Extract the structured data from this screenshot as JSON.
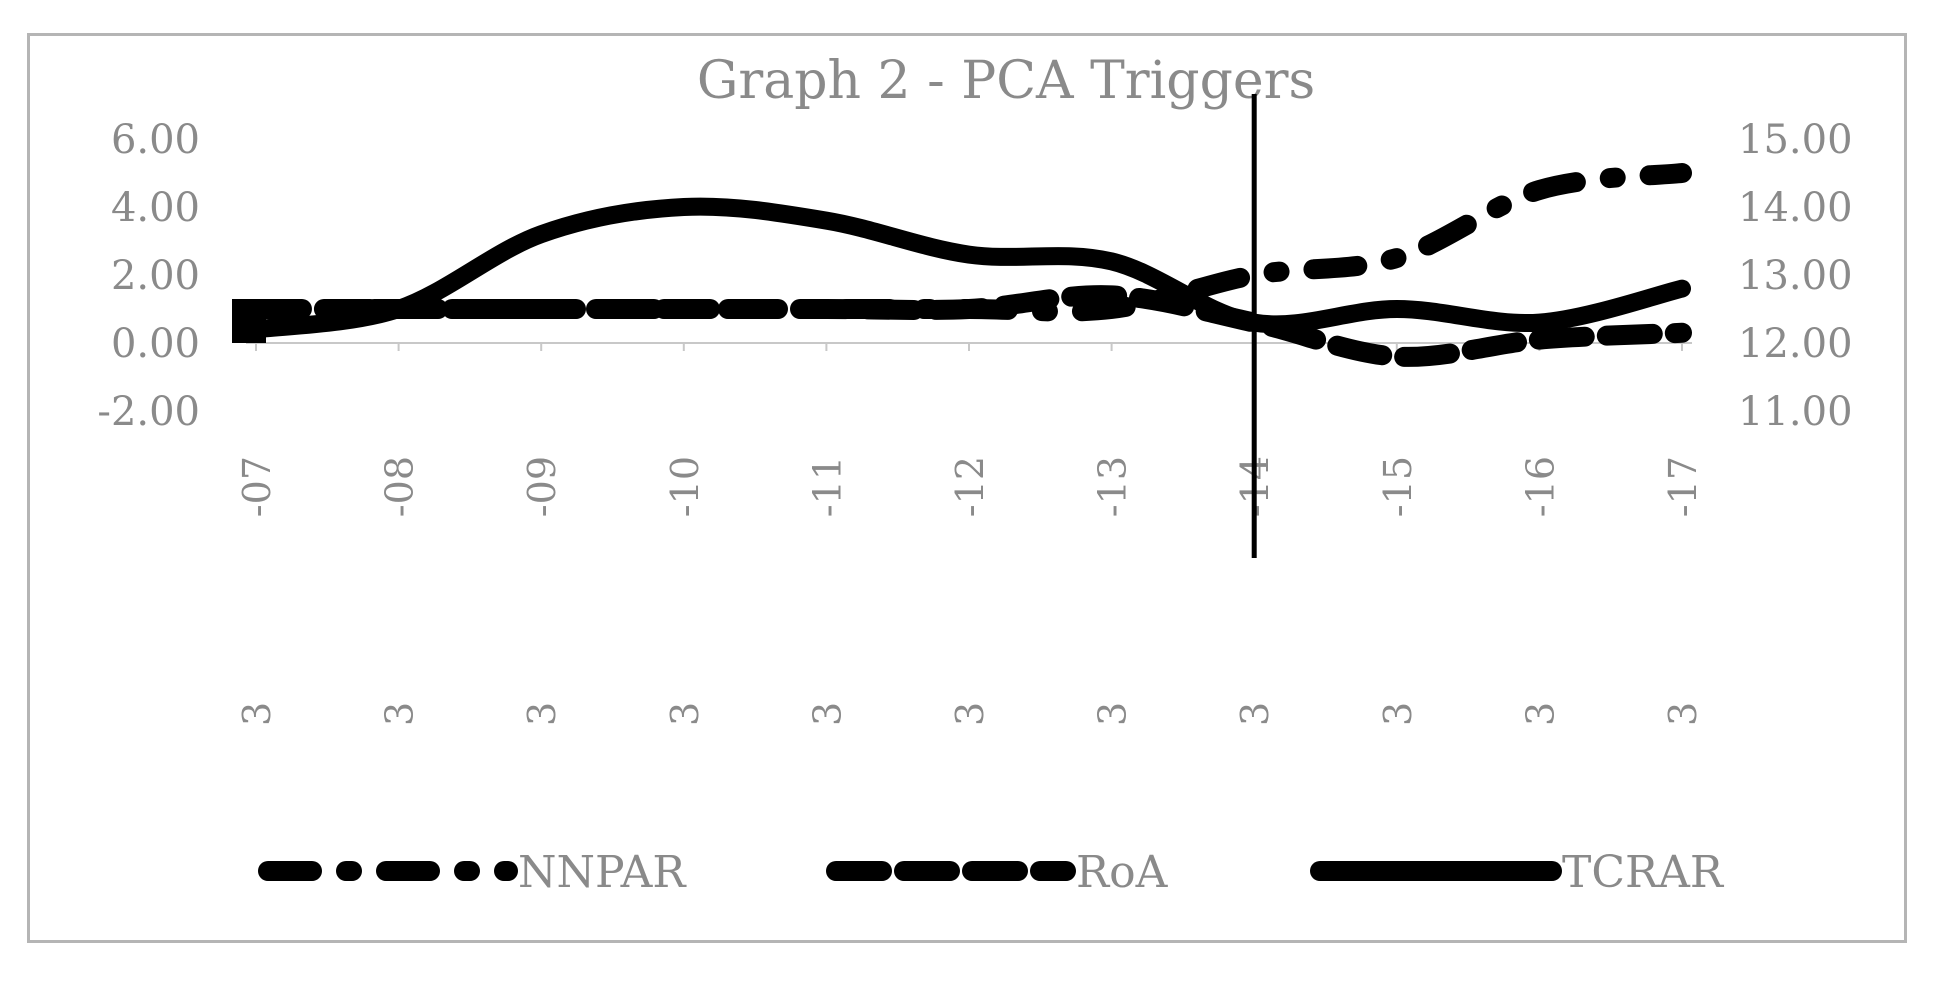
{
  "chart_data": {
    "type": "line",
    "title": "Graph 2 - PCA Triggers",
    "categories": [
      "3 -07",
      "3 -08",
      "3 -09",
      "3 -10",
      "3 -11",
      "3 -12",
      "3 -13",
      "3 -14",
      "3 -15",
      "3 -16",
      "3 -17"
    ],
    "category_lines": [
      [
        "-07",
        "3"
      ],
      [
        "-08",
        "3"
      ],
      [
        "-09",
        "3"
      ],
      [
        "-10",
        "3"
      ],
      [
        "-11",
        "3"
      ],
      [
        "-12",
        "3"
      ],
      [
        "-13",
        "3"
      ],
      [
        "-14",
        "3"
      ],
      [
        "-15",
        "3"
      ],
      [
        "-16",
        "3"
      ],
      [
        "-17",
        "3"
      ]
    ],
    "y_left": {
      "ticks": [
        "6.00",
        "4.00",
        "2.00",
        "0.00",
        "-2.00"
      ],
      "lim": [
        -2,
        6
      ]
    },
    "y_right": {
      "ticks": [
        "15.00",
        "14.00",
        "13.00",
        "12.00",
        "11.00"
      ],
      "lim": [
        11,
        15
      ]
    },
    "series": [
      {
        "name": "NNPAR",
        "axis": "left",
        "style": "dash-dot",
        "values": [
          1.0,
          1.0,
          1.0,
          1.0,
          1.0,
          1.0,
          1.0,
          2.0,
          2.5,
          4.5,
          5.0
        ]
      },
      {
        "name": "RoA",
        "axis": "left",
        "style": "dashed",
        "values": [
          1.0,
          1.0,
          1.0,
          1.0,
          1.0,
          1.0,
          1.4,
          0.6,
          -0.4,
          0.1,
          0.3
        ]
      },
      {
        "name": "TCRAR",
        "axis": "right",
        "style": "solid",
        "values": [
          12.2,
          12.5,
          13.6,
          14.0,
          13.8,
          13.3,
          13.2,
          12.3,
          12.5,
          12.3,
          12.8
        ]
      }
    ],
    "marker_category_index": 7,
    "legend_position": "bottom",
    "grid": false,
    "color": "#000000"
  }
}
